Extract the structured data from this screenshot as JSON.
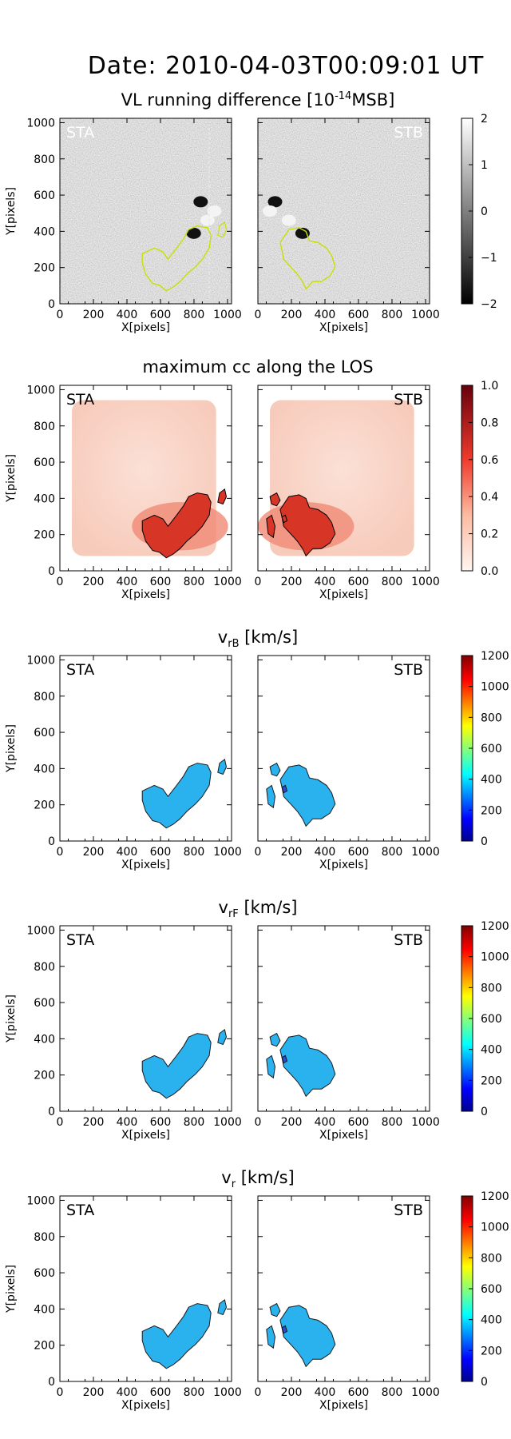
{
  "main_title": "Date: 2010-04-03T00:09:01 UT",
  "colors": {
    "contour_vl": "#c8e000",
    "contour_cc": "#000000",
    "velocity_fill": "#2ab2ee",
    "velocity_dot": "#2a4bd6"
  },
  "chart_data": [
    {
      "type": "heatmap",
      "title": "VL running difference [10⁻¹⁴MSB]",
      "title_main": "VL running difference [10",
      "title_exp": "-14",
      "title_tail": "MSB]",
      "panels": [
        "STA",
        "STB"
      ],
      "xlabel": "X[pixels]",
      "ylabel": "Y[pixels]",
      "xlim": [
        0,
        1024
      ],
      "ylim": [
        0,
        1024
      ],
      "xticks": [
        "0",
        "200",
        "400",
        "600",
        "800",
        "1000"
      ],
      "yticks": [
        "0",
        "200",
        "400",
        "600",
        "800",
        "1000"
      ],
      "colorbar": {
        "colormap": "gray",
        "range": [
          -2,
          2
        ],
        "ticks": [
          "−2",
          "−1",
          "0",
          "1",
          "2"
        ]
      }
    },
    {
      "type": "heatmap",
      "title": "maximum cc along the LOS",
      "panels": [
        "STA",
        "STB"
      ],
      "xlabel": "X[pixels]",
      "ylabel": "Y[pixels]",
      "xlim": [
        0,
        1024
      ],
      "ylim": [
        0,
        1024
      ],
      "xticks": [
        "0",
        "200",
        "400",
        "600",
        "800",
        "1000"
      ],
      "yticks": [
        "0",
        "200",
        "400",
        "600",
        "800",
        "1000"
      ],
      "colorbar": {
        "colormap": "reds",
        "range": [
          0.0,
          1.0
        ],
        "ticks": [
          "0.0",
          "0.2",
          "0.4",
          "0.6",
          "0.8",
          "1.0"
        ]
      }
    },
    {
      "type": "heatmap",
      "title": "v_rB [km/s]",
      "title_main": "v",
      "title_sub": "rB",
      "title_tail": "[km/s]",
      "panels": [
        "STA",
        "STB"
      ],
      "xlabel": "X[pixels]",
      "ylabel": "Y[pixels]",
      "xlim": [
        0,
        1024
      ],
      "ylim": [
        0,
        1024
      ],
      "xticks": [
        "0",
        "200",
        "400",
        "600",
        "800",
        "1000"
      ],
      "yticks": [
        "0",
        "200",
        "400",
        "600",
        "800",
        "1000"
      ],
      "colorbar": {
        "colormap": "jet",
        "range": [
          0,
          1200
        ],
        "ticks": [
          "0",
          "200",
          "400",
          "600",
          "800",
          "1000",
          "1200"
        ]
      }
    },
    {
      "type": "heatmap",
      "title": "v_rF [km/s]",
      "title_main": "v",
      "title_sub": "rF",
      "title_tail": "[km/s]",
      "panels": [
        "STA",
        "STB"
      ],
      "xlabel": "X[pixels]",
      "ylabel": "Y[pixels]",
      "xlim": [
        0,
        1024
      ],
      "ylim": [
        0,
        1024
      ],
      "xticks": [
        "0",
        "200",
        "400",
        "600",
        "800",
        "1000"
      ],
      "yticks": [
        "0",
        "200",
        "400",
        "600",
        "800",
        "1000"
      ],
      "colorbar": {
        "colormap": "jet",
        "range": [
          0,
          1200
        ],
        "ticks": [
          "0",
          "200",
          "400",
          "600",
          "800",
          "1000",
          "1200"
        ]
      }
    },
    {
      "type": "heatmap",
      "title": "v_r [km/s]",
      "title_main": "v",
      "title_sub": "r",
      "title_tail": "[km/s]",
      "panels": [
        "STA",
        "STB"
      ],
      "xlabel": "X[pixels]",
      "ylabel": "Y[pixels]",
      "xlim": [
        0,
        1024
      ],
      "ylim": [
        0,
        1024
      ],
      "xticks": [
        "0",
        "200",
        "400",
        "600",
        "800",
        "1000"
      ],
      "yticks": [
        "0",
        "200",
        "400",
        "600",
        "800",
        "1000"
      ],
      "colorbar": {
        "colormap": "jet",
        "range": [
          0,
          1200
        ],
        "ticks": [
          "0",
          "200",
          "400",
          "600",
          "800",
          "1000",
          "1200"
        ]
      }
    }
  ]
}
